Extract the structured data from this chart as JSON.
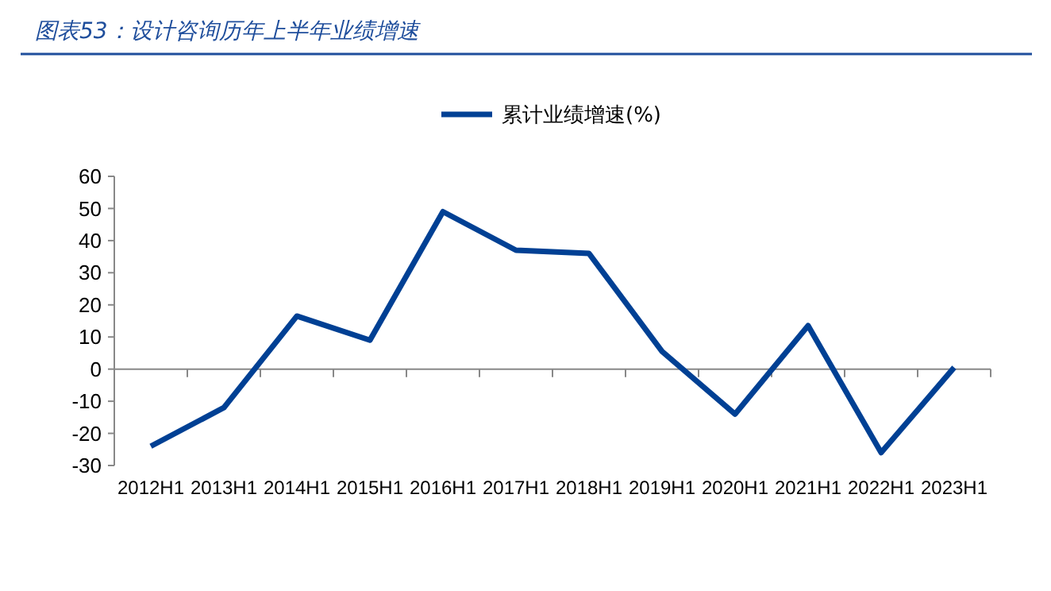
{
  "chart_data": {
    "type": "line",
    "title": "图表53：设计咨询历年上半年业绩增速",
    "categories": [
      "2012H1",
      "2013H1",
      "2014H1",
      "2015H1",
      "2016H1",
      "2017H1",
      "2018H1",
      "2019H1",
      "2020H1",
      "2021H1",
      "2022H1",
      "2023H1"
    ],
    "series": [
      {
        "name": "累计业绩增速(%)",
        "color": "#004094",
        "values": [
          -24,
          -12,
          16.5,
          9,
          49,
          37,
          36,
          5.5,
          -14,
          13.5,
          -26,
          0.5
        ]
      }
    ],
    "ylim": [
      -30,
      60
    ],
    "yticks": [
      -30,
      -20,
      -10,
      0,
      10,
      20,
      30,
      40,
      50,
      60
    ],
    "legend": "top",
    "marker": "none",
    "line_style": "solid"
  }
}
